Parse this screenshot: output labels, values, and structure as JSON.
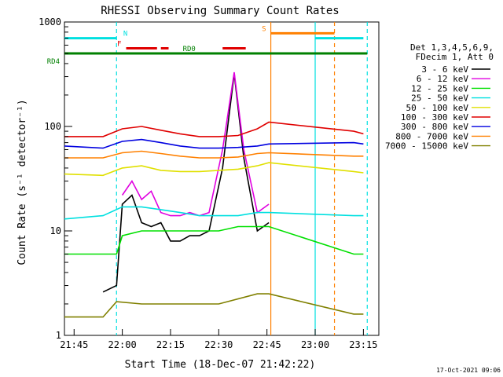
{
  "chart_data": {
    "type": "line",
    "title": "RHESSI Observing Summary Count Rates",
    "xlabel": "Start Time (18-Dec-07 21:42:22)",
    "ylabel": "Count Rate (s⁻¹ detector⁻¹)",
    "y_scale": "log",
    "ylim": [
      1,
      1000
    ],
    "xlim_minutes": [
      21.7,
      23.33
    ],
    "x_ticks": [
      {
        "label": "21:45",
        "t": 21.75
      },
      {
        "label": "22:00",
        "t": 22.0
      },
      {
        "label": "22:15",
        "t": 22.25
      },
      {
        "label": "22:30",
        "t": 22.5
      },
      {
        "label": "22:45",
        "t": 22.75
      },
      {
        "label": "23:00",
        "t": 23.0
      },
      {
        "label": "23:15",
        "t": 23.25
      }
    ],
    "y_ticks": [
      {
        "label": "1",
        "v": 1
      },
      {
        "label": "10",
        "v": 10
      },
      {
        "label": "100",
        "v": 100
      },
      {
        "label": "1000",
        "v": 1000
      }
    ],
    "legend_header": [
      "Det 1,3,4,5,6,9,",
      "FDecim 1, Att 0"
    ],
    "series": [
      {
        "name": "3 - 6 keV",
        "color": "#000000",
        "points": [
          [
            21.9,
            2.6
          ],
          [
            21.97,
            3.0
          ],
          [
            22.0,
            18
          ],
          [
            22.05,
            22
          ],
          [
            22.1,
            12
          ],
          [
            22.15,
            11
          ],
          [
            22.2,
            12
          ],
          [
            22.25,
            8
          ],
          [
            22.3,
            8
          ],
          [
            22.35,
            9
          ],
          [
            22.4,
            9
          ],
          [
            22.45,
            10
          ],
          [
            22.52,
            40
          ],
          [
            22.58,
            320
          ],
          [
            22.63,
            50
          ],
          [
            22.7,
            10
          ],
          [
            22.76,
            12
          ]
        ]
      },
      {
        "name": "6 - 12 keV",
        "color": "#e000e0",
        "points": [
          [
            22.0,
            22
          ],
          [
            22.05,
            30
          ],
          [
            22.1,
            20
          ],
          [
            22.15,
            24
          ],
          [
            22.2,
            15
          ],
          [
            22.25,
            14
          ],
          [
            22.3,
            14
          ],
          [
            22.35,
            15
          ],
          [
            22.4,
            14
          ],
          [
            22.45,
            15
          ],
          [
            22.52,
            60
          ],
          [
            22.58,
            330
          ],
          [
            22.63,
            60
          ],
          [
            22.7,
            15
          ],
          [
            22.76,
            18
          ]
        ]
      },
      {
        "name": "12 - 25 keV",
        "color": "#00e000",
        "points": [
          [
            21.7,
            6
          ],
          [
            21.9,
            6
          ],
          [
            21.97,
            6
          ],
          [
            22.0,
            9
          ],
          [
            22.1,
            10
          ],
          [
            22.2,
            10
          ],
          [
            22.3,
            10
          ],
          [
            22.4,
            10
          ],
          [
            22.5,
            10
          ],
          [
            22.6,
            11
          ],
          [
            22.7,
            11
          ],
          [
            22.76,
            11
          ],
          [
            23.2,
            6
          ],
          [
            23.25,
            6
          ]
        ]
      },
      {
        "name": "25 - 50 keV",
        "color": "#00e0e0",
        "points": [
          [
            21.7,
            13
          ],
          [
            21.9,
            14
          ],
          [
            22.0,
            17
          ],
          [
            22.1,
            17
          ],
          [
            22.2,
            16
          ],
          [
            22.3,
            15
          ],
          [
            22.4,
            14
          ],
          [
            22.5,
            14
          ],
          [
            22.6,
            14
          ],
          [
            22.7,
            15
          ],
          [
            22.76,
            15
          ],
          [
            23.2,
            14
          ],
          [
            23.25,
            14
          ]
        ]
      },
      {
        "name": "50 - 100 keV",
        "color": "#e0e000",
        "points": [
          [
            21.7,
            35
          ],
          [
            21.9,
            34
          ],
          [
            22.0,
            40
          ],
          [
            22.1,
            42
          ],
          [
            22.2,
            38
          ],
          [
            22.3,
            37
          ],
          [
            22.4,
            37
          ],
          [
            22.5,
            38
          ],
          [
            22.6,
            39
          ],
          [
            22.7,
            42
          ],
          [
            22.76,
            45
          ],
          [
            23.2,
            37
          ],
          [
            23.25,
            36
          ]
        ]
      },
      {
        "name": "100 - 300 keV",
        "color": "#e00000",
        "points": [
          [
            21.7,
            80
          ],
          [
            21.9,
            80
          ],
          [
            22.0,
            95
          ],
          [
            22.1,
            100
          ],
          [
            22.2,
            92
          ],
          [
            22.3,
            85
          ],
          [
            22.4,
            80
          ],
          [
            22.5,
            80
          ],
          [
            22.6,
            82
          ],
          [
            22.7,
            95
          ],
          [
            22.76,
            110
          ],
          [
            23.2,
            90
          ],
          [
            23.25,
            85
          ]
        ]
      },
      {
        "name": "300 - 800 keV",
        "color": "#0000e0",
        "points": [
          [
            21.7,
            65
          ],
          [
            21.9,
            62
          ],
          [
            22.0,
            72
          ],
          [
            22.1,
            75
          ],
          [
            22.2,
            70
          ],
          [
            22.3,
            65
          ],
          [
            22.4,
            62
          ],
          [
            22.5,
            62
          ],
          [
            22.6,
            63
          ],
          [
            22.7,
            65
          ],
          [
            22.76,
            68
          ],
          [
            23.2,
            70
          ],
          [
            23.25,
            68
          ]
        ]
      },
      {
        "name": "800 - 7000 keV",
        "color": "#ff8000",
        "points": [
          [
            21.7,
            50
          ],
          [
            21.9,
            50
          ],
          [
            22.0,
            56
          ],
          [
            22.1,
            58
          ],
          [
            22.2,
            55
          ],
          [
            22.3,
            52
          ],
          [
            22.4,
            50
          ],
          [
            22.5,
            50
          ],
          [
            22.6,
            51
          ],
          [
            22.7,
            55
          ],
          [
            22.76,
            56
          ],
          [
            23.2,
            52
          ],
          [
            23.25,
            52
          ]
        ]
      },
      {
        "name": "7000 - 15000 keV",
        "color": "#808000",
        "points": [
          [
            21.7,
            1.5
          ],
          [
            21.8,
            1.5
          ],
          [
            21.9,
            1.5
          ],
          [
            21.97,
            2.1
          ],
          [
            22.1,
            2.0
          ],
          [
            22.3,
            2.0
          ],
          [
            22.5,
            2.0
          ],
          [
            22.7,
            2.5
          ],
          [
            22.76,
            2.5
          ],
          [
            23.2,
            1.6
          ],
          [
            23.25,
            1.6
          ]
        ]
      }
    ],
    "flags": [
      {
        "label": "N",
        "color": "#00e0e0",
        "y": 700,
        "segments": [
          [
            21.7,
            21.97
          ],
          [
            23.0,
            23.25
          ]
        ]
      },
      {
        "label": "F",
        "color": "#e00000",
        "y": 560,
        "segments": [
          [
            22.02,
            22.18
          ],
          [
            22.2,
            22.24
          ],
          [
            22.52,
            22.64
          ]
        ]
      },
      {
        "label": "RD4",
        "color": "#008000",
        "y": 500,
        "segments": [
          [
            21.7,
            23.27
          ]
        ]
      },
      {
        "label": "RD0",
        "color": "#008000",
        "y": 500,
        "segments": []
      },
      {
        "label": "S",
        "color": "#ff8000",
        "y": 780,
        "segments": [
          [
            22.77,
            23.1
          ]
        ]
      }
    ],
    "vlines": [
      {
        "t": 21.97,
        "color": "#00e0e0",
        "dash": true
      },
      {
        "t": 22.77,
        "color": "#ff8000",
        "dash": false
      },
      {
        "t": 23.0,
        "color": "#00e0e0",
        "dash": false
      },
      {
        "t": 23.1,
        "color": "#ff8000",
        "dash": true
      },
      {
        "t": 23.27,
        "color": "#00e0e0",
        "dash": true
      }
    ],
    "footer": "17-Oct-2021 09:06"
  }
}
